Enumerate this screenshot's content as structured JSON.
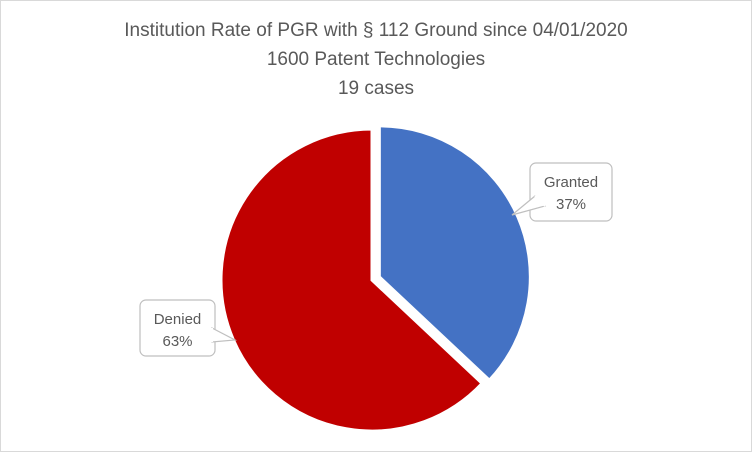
{
  "chart_data": {
    "type": "pie",
    "title": "Institution Rate of PGR with § 112 Ground since 04/01/2020",
    "subtitle": "1600 Patent Technologies",
    "subtitle2": "19 cases",
    "slices": [
      {
        "label": "Granted",
        "value": 37,
        "percent_label": "37%",
        "color": "#4472C4",
        "exploded": true
      },
      {
        "label": "Denied",
        "value": 63,
        "percent_label": "63%",
        "color": "#C00000",
        "exploded": false
      }
    ],
    "start_angle_deg": 0,
    "direction": "clockwise",
    "label_style": "callout"
  }
}
